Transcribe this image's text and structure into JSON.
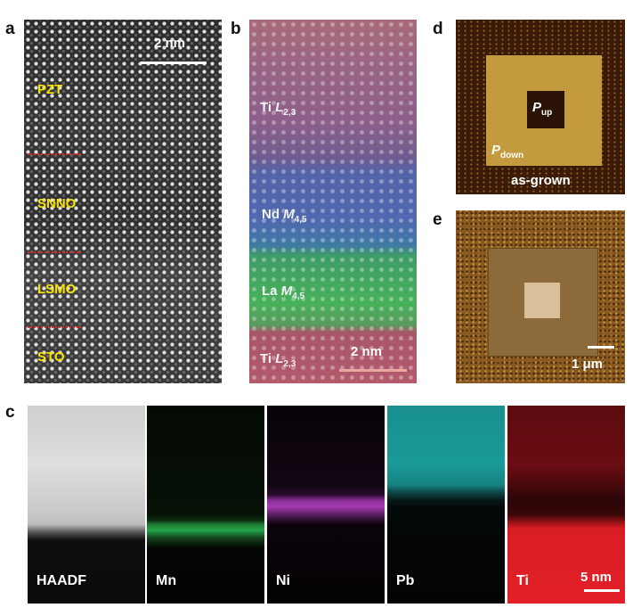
{
  "panels": {
    "a": {
      "letter": "a",
      "scale_bar": "2 nm",
      "layers": [
        "PZT",
        "SNNO",
        "LSMO",
        "STO"
      ]
    },
    "b": {
      "letter": "b",
      "scale_bar": "2 nm",
      "edges": [
        {
          "element": "Ti",
          "edge": "L",
          "sub": "2,3"
        },
        {
          "element": "Nd",
          "edge": "M",
          "sub": "4,5"
        },
        {
          "element": "La",
          "edge": "M",
          "sub": "4,5"
        },
        {
          "element": "Ti",
          "edge": "L",
          "sub": "2,3"
        }
      ]
    },
    "c": {
      "letter": "c",
      "maps": [
        "HAADF",
        "Mn",
        "Ni",
        "Pb",
        "Ti"
      ],
      "scale_bar": "5 nm"
    },
    "d": {
      "letter": "d",
      "p_symbol": "P",
      "p_up_sub": "up",
      "p_down_sub": "down",
      "caption": "as-grown"
    },
    "e": {
      "letter": "e",
      "scale_bar": "1 μm"
    }
  }
}
